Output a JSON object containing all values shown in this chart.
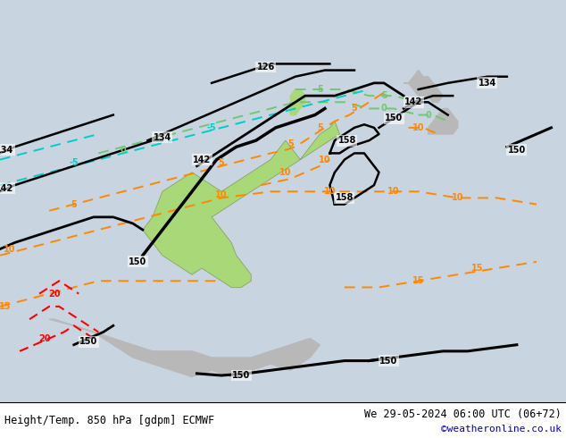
{
  "title_left": "Height/Temp. 850 hPa [gdpm] ECMWF",
  "title_right": "We 29-05-2024 06:00 UTC (06+72)",
  "credit": "©weatheronline.co.uk",
  "bg_color": "#c8d4e0",
  "australia_color": "#a8d878",
  "land_color": "#b8b8b8",
  "credit_color": "#0000cc",
  "lon_min": 85,
  "lon_max": 200,
  "lat_min": 5,
  "lat_max": -58
}
